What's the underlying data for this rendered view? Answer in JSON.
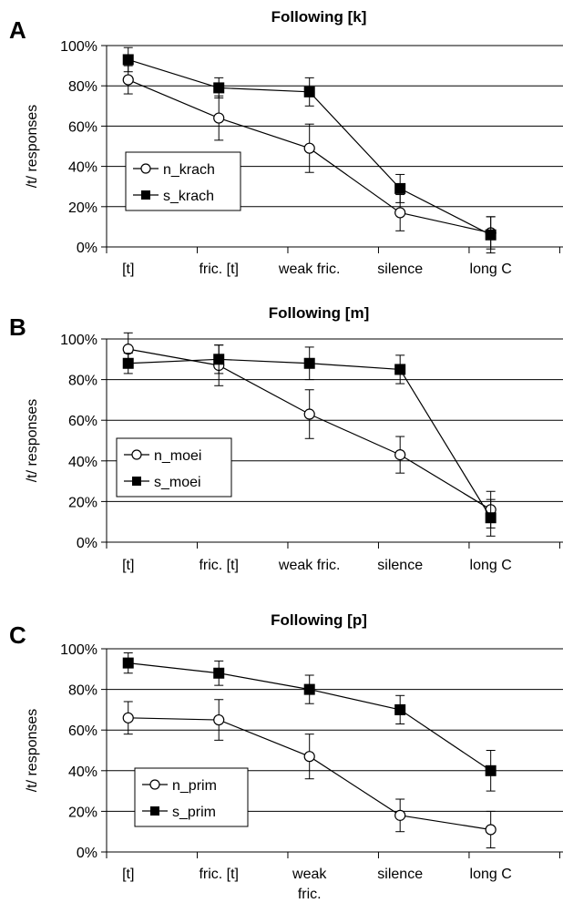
{
  "chart_data": [
    {
      "type": "line",
      "panel_letter": "A",
      "title": "Following [k]",
      "ylabel": "/t/ responses",
      "xlabel": "",
      "categories": [
        "[t]",
        "fric. [t]",
        "weak fric.",
        "silence",
        "long C"
      ],
      "ylim": [
        0,
        100
      ],
      "yticks": [
        "0%",
        "20%",
        "40%",
        "60%",
        "80%",
        "100%"
      ],
      "grid": true,
      "legend": "left",
      "series": [
        {
          "name": "n_krach",
          "marker": "open-circle",
          "values": [
            83,
            64,
            49,
            17,
            7
          ],
          "err": [
            7,
            11,
            12,
            9,
            8
          ]
        },
        {
          "name": "s_krach",
          "marker": "filled-square",
          "values": [
            93,
            79,
            77,
            29,
            6
          ],
          "err": [
            6,
            5,
            7,
            7,
            9
          ]
        }
      ]
    },
    {
      "type": "line",
      "panel_letter": "B",
      "title": "Following [m]",
      "ylabel": "/t/ responses",
      "xlabel": "",
      "categories": [
        "[t]",
        "fric. [t]",
        "weak fric.",
        "silence",
        "long C"
      ],
      "ylim": [
        0,
        100
      ],
      "yticks": [
        "0%",
        "20%",
        "40%",
        "60%",
        "80%",
        "100%"
      ],
      "grid": true,
      "legend": "left",
      "series": [
        {
          "name": "n_moei",
          "marker": "open-circle",
          "values": [
            95,
            87,
            63,
            43,
            16
          ],
          "err": [
            8,
            10,
            12,
            9,
            9
          ]
        },
        {
          "name": "s_moei",
          "marker": "filled-square",
          "values": [
            88,
            90,
            88,
            85,
            12
          ],
          "err": [
            5,
            7,
            8,
            7,
            9
          ]
        }
      ]
    },
    {
      "type": "line",
      "panel_letter": "C",
      "title": "Following [p]",
      "ylabel": "/t/ responses",
      "xlabel": "",
      "categories": [
        "[t]",
        "fric. [t]",
        "weak\nfric.",
        "silence",
        "long C"
      ],
      "ylim": [
        0,
        100
      ],
      "yticks": [
        "0%",
        "20%",
        "40%",
        "60%",
        "80%",
        "100%"
      ],
      "grid": true,
      "legend": "bottom-left",
      "series": [
        {
          "name": "n_prim",
          "marker": "open-circle",
          "values": [
            66,
            65,
            47,
            18,
            11
          ],
          "err": [
            8,
            10,
            11,
            8,
            9
          ]
        },
        {
          "name": "s_prim",
          "marker": "filled-square",
          "values": [
            93,
            88,
            80,
            70,
            40
          ],
          "err": [
            5,
            6,
            7,
            7,
            10
          ]
        }
      ]
    }
  ]
}
